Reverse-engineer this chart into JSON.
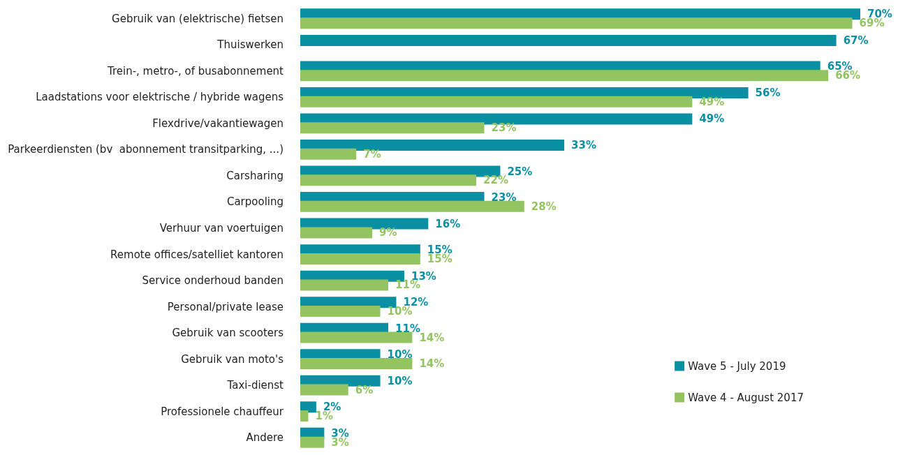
{
  "chart_data": {
    "type": "bar",
    "orientation": "horizontal",
    "categories": [
      "Gebruik van (elektrische) fietsen",
      "Thuiswerken",
      "Trein-, metro-, of busabonnement",
      "Laadstations voor elektrische / hybride wagens",
      "Flexdrive/vakantiewagen",
      "Parkeerdiensten (bv  abonnement transitparking, ...)",
      "Carsharing",
      "Carpooling",
      "Verhuur van voertuigen",
      "Remote offices/satelliet kantoren",
      "Service onderhoud banden",
      "Personal/private lease",
      "Gebruik van scooters",
      "Gebruik van moto's",
      "Taxi-dienst",
      "Professionele chauffeur",
      "Andere"
    ],
    "series": [
      {
        "name": "Wave 5 - July 2019",
        "color": "#0a8fa3",
        "values": [
          70,
          67,
          65,
          56,
          49,
          33,
          25,
          23,
          16,
          15,
          13,
          12,
          11,
          10,
          10,
          2,
          3
        ],
        "value_labels": [
          "70%",
          "67%",
          "65%",
          "56%",
          "49%",
          "33%",
          "25%",
          "23%",
          "16%",
          "15%",
          "13%",
          "12%",
          "11%",
          "10%",
          "10%",
          "2%",
          "3%"
        ]
      },
      {
        "name": "Wave 4 - August 2017",
        "color": "#94c462",
        "values": [
          69,
          null,
          66,
          49,
          23,
          7,
          22,
          28,
          9,
          15,
          11,
          10,
          14,
          14,
          6,
          1,
          3
        ],
        "value_labels": [
          "69%",
          null,
          "66%",
          "49%",
          "23%",
          "7%",
          "22%",
          "28%",
          "9%",
          "15%",
          "11%",
          "10%",
          "14%",
          "14%",
          "6%",
          "1%",
          "3%"
        ]
      }
    ],
    "legend": "bottom right",
    "grid": false,
    "tick_labels": "y"
  }
}
